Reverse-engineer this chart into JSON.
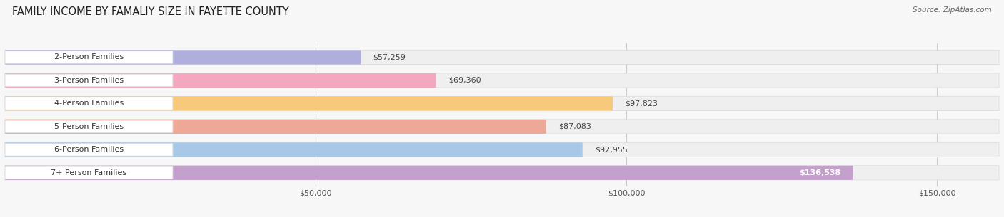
{
  "title": "FAMILY INCOME BY FAMALIY SIZE IN FAYETTE COUNTY",
  "source": "Source: ZipAtlas.com",
  "categories": [
    "2-Person Families",
    "3-Person Families",
    "4-Person Families",
    "5-Person Families",
    "6-Person Families",
    "7+ Person Families"
  ],
  "values": [
    57259,
    69360,
    97823,
    87083,
    92955,
    136538
  ],
  "bar_colors": [
    "#b0aedd",
    "#f4a8c0",
    "#f7c97c",
    "#eda898",
    "#a8c8e8",
    "#c4a0cc"
  ],
  "value_labels": [
    "$57,259",
    "$69,360",
    "$97,823",
    "$87,083",
    "$92,955",
    "$136,538"
  ],
  "xlim": [
    0,
    160000
  ],
  "xticks": [
    50000,
    100000,
    150000
  ],
  "xticklabels": [
    "$50,000",
    "$100,000",
    "$150,000"
  ],
  "background_color": "#f7f7f7",
  "bar_bg_color": "#efefef",
  "bar_bg_edge_color": "#dddddd",
  "title_fontsize": 10.5,
  "source_fontsize": 7.5,
  "label_fontsize": 8,
  "value_fontsize": 8,
  "tick_fontsize": 8,
  "label_box_color": "#ffffff",
  "label_box_edge_color": "#dddddd"
}
